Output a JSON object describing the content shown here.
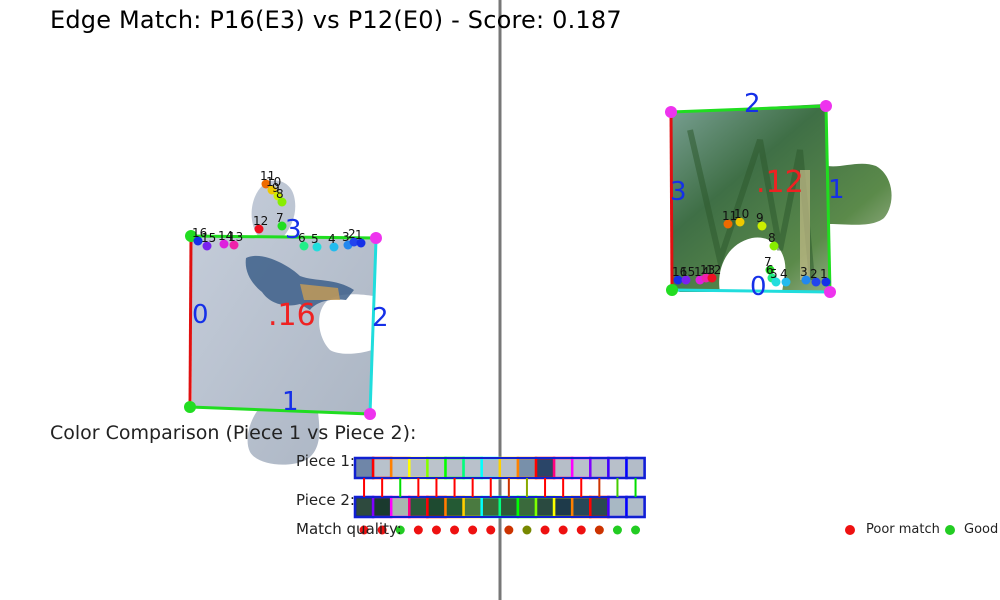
{
  "title": "Edge Match: P16(E3) vs P12(E0) - Score: 0.187",
  "left_piece": {
    "label": ".16",
    "edge_labels": [
      "0",
      "1",
      "2",
      "3"
    ],
    "point_labels": [
      "16",
      "15",
      "14",
      "13",
      "12",
      "11",
      "10",
      "9",
      "8",
      "7",
      "6",
      "5",
      "4",
      "3",
      "2",
      "1"
    ]
  },
  "right_piece": {
    "label": ".12",
    "edge_labels": [
      "0",
      "1",
      "2",
      "3"
    ],
    "point_labels": [
      "16",
      "15",
      "14",
      "13",
      "12",
      "11",
      "10",
      "9",
      "8",
      "7",
      "6",
      "5",
      "4",
      "3",
      "2",
      "1"
    ]
  },
  "color_comparison": {
    "title": "Color Comparison (Piece 1 vs Piece 2):",
    "piece1_label": "Piece 1:",
    "piece2_label": "Piece 2:",
    "match_label": "Match quality:",
    "legend_poor": "Poor match",
    "legend_good": "Good",
    "piece1_fill": [
      "#6f86a8",
      "#b8c2cc",
      "#bcc4cc",
      "#b6bec8",
      "#bbc3cb",
      "#b7bfc9",
      "#b9c1cb",
      "#b4bcc6",
      "#b7bfc9",
      "#7890aa",
      "#2a4568",
      "#b6bec8",
      "#b9c1cb",
      "#b5bdc7",
      "#b8c0ca",
      "#b3bcc8"
    ],
    "piece1_border": [
      "#1020d0",
      "#ff0000",
      "#ff8000",
      "#ffff00",
      "#80ff00",
      "#00ff00",
      "#00ff80",
      "#00ffff",
      "#ffd000",
      "#ff8000",
      "#ff0000",
      "#ff0080",
      "#ff00ff",
      "#8000ff",
      "#4000ff",
      "#0000ff"
    ],
    "piece2_fill": [
      "#2e4a3e",
      "#1a3a2e",
      "#a8b8b0",
      "#2a5a3a",
      "#1e4a30",
      "#245a34",
      "#4a7a40",
      "#3a6a38",
      "#2e5a36",
      "#3a6a3c",
      "#2a4a40",
      "#1e3a4a",
      "#284858",
      "#2a4a50",
      "#a8b8c4",
      "#b0bcc8"
    ],
    "piece2_border": [
      "#0000ff",
      "#8000ff",
      "#ff00ff",
      "#ff0080",
      "#ff0000",
      "#ff8000",
      "#ffd000",
      "#00ffff",
      "#00ff80",
      "#00ff00",
      "#80ff00",
      "#ffff00",
      "#ff8000",
      "#ff0000",
      "#4000ff",
      "#0000ff"
    ],
    "line_colors": [
      "#ff0000",
      "#ff0000",
      "#00dd00",
      "#ff0000",
      "#ff0000",
      "#ff0000",
      "#ff0000",
      "#ff0000",
      "#cc3300",
      "#88aa00",
      "#ff0000",
      "#ff0000",
      "#ff0000",
      "#cc3300",
      "#44cc00",
      "#00dd00"
    ],
    "quality_colors": [
      "#ee1111",
      "#ee1111",
      "#22cc22",
      "#ee1111",
      "#ee1111",
      "#ee1111",
      "#ee1111",
      "#ee1111",
      "#cc3300",
      "#778800",
      "#ee1111",
      "#ee1111",
      "#ee1111",
      "#cc3300",
      "#22cc22",
      "#22cc22"
    ],
    "legend_poor_color": "#ee1111",
    "legend_good_color": "#22cc22"
  }
}
